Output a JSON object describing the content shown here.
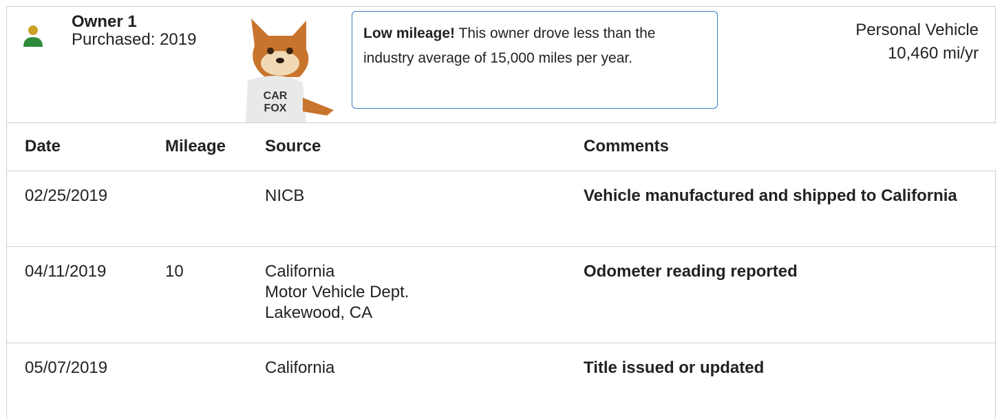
{
  "header": {
    "owner": "Owner 1",
    "purchased": "Purchased: 2019",
    "mascot_shirt": [
      "CAR",
      "FOX"
    ],
    "callout": {
      "bold": "Low mileage!",
      "text": "This owner drove less than the industry average of 15,000 miles per year."
    },
    "usage": "Personal Vehicle",
    "mileage_rate": "10,460 mi/yr"
  },
  "table": {
    "columns": [
      "Date",
      "Mileage",
      "Source",
      "Comments"
    ],
    "rows": [
      {
        "date": "02/25/2019",
        "mileage": null,
        "source": [
          "NICB"
        ],
        "comments": "Vehicle manufactured and shipped to California"
      },
      {
        "date": "04/11/2019",
        "mileage": 10,
        "source": [
          "California",
          "Motor Vehicle Dept.",
          "Lakewood, CA"
        ],
        "comments": "Odometer reading reported"
      },
      {
        "date": "05/07/2019",
        "mileage": null,
        "source": [
          "California"
        ],
        "comments": "Title issued or updated"
      }
    ]
  }
}
